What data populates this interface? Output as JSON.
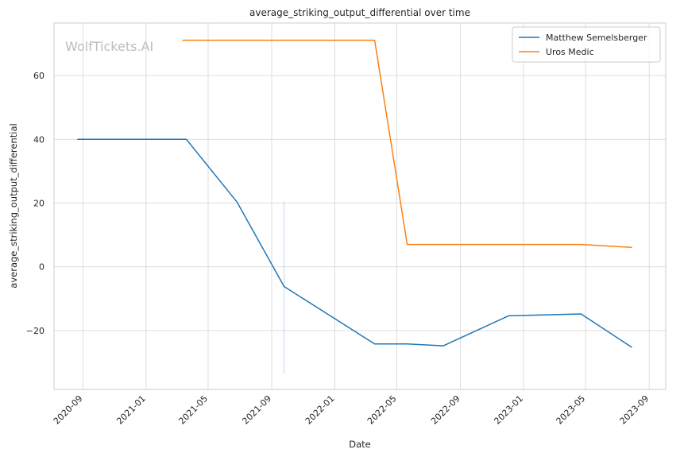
{
  "chart_data": {
    "type": "line",
    "title": "average_striking_output_differential over time",
    "xlabel": "Date",
    "ylabel": "average_striking_output_differential",
    "watermark": "WolfTickets.AI",
    "x_ticks": [
      "2020-09",
      "2021-01",
      "2021-05",
      "2021-09",
      "2022-01",
      "2022-05",
      "2022-09",
      "2023-01",
      "2023-05",
      "2023-09"
    ],
    "y_ticks": [
      -20,
      0,
      20,
      40,
      60
    ],
    "xlim": [
      "2020-07-07",
      "2023-10-03"
    ],
    "ylim": [
      -38.5,
      76.5
    ],
    "grid": true,
    "legend_position": "top-right",
    "series": [
      {
        "name": "Matthew Semelsberger",
        "color": "#1f77b4",
        "points": [
          {
            "x": "2020-08-22",
            "y": 40.0
          },
          {
            "x": "2021-03-20",
            "y": 40.0
          },
          {
            "x": "2021-06-26",
            "y": 20.3
          },
          {
            "x": "2021-09-25",
            "y": -6.2
          },
          {
            "x": "2022-03-19",
            "y": -24.2
          },
          {
            "x": "2022-05-21",
            "y": -24.2
          },
          {
            "x": "2022-07-30",
            "y": -24.8
          },
          {
            "x": "2022-12-03",
            "y": -15.4
          },
          {
            "x": "2023-04-22",
            "y": -14.8
          },
          {
            "x": "2023-07-29",
            "y": -25.2
          }
        ]
      },
      {
        "name": "Uros Medic",
        "color": "#ff7f0e",
        "points": [
          {
            "x": "2021-03-13",
            "y": 71.1
          },
          {
            "x": "2022-03-19",
            "y": 71.1
          },
          {
            "x": "2022-05-21",
            "y": 7.0
          },
          {
            "x": "2023-04-22",
            "y": 7.0
          },
          {
            "x": "2023-07-29",
            "y": 6.1
          }
        ]
      }
    ],
    "annotations": [
      {
        "type": "vertical-line",
        "x": "2021-09-25",
        "y_from": -33.5,
        "y_to": 20.5,
        "color": "#aec7e8"
      }
    ]
  }
}
